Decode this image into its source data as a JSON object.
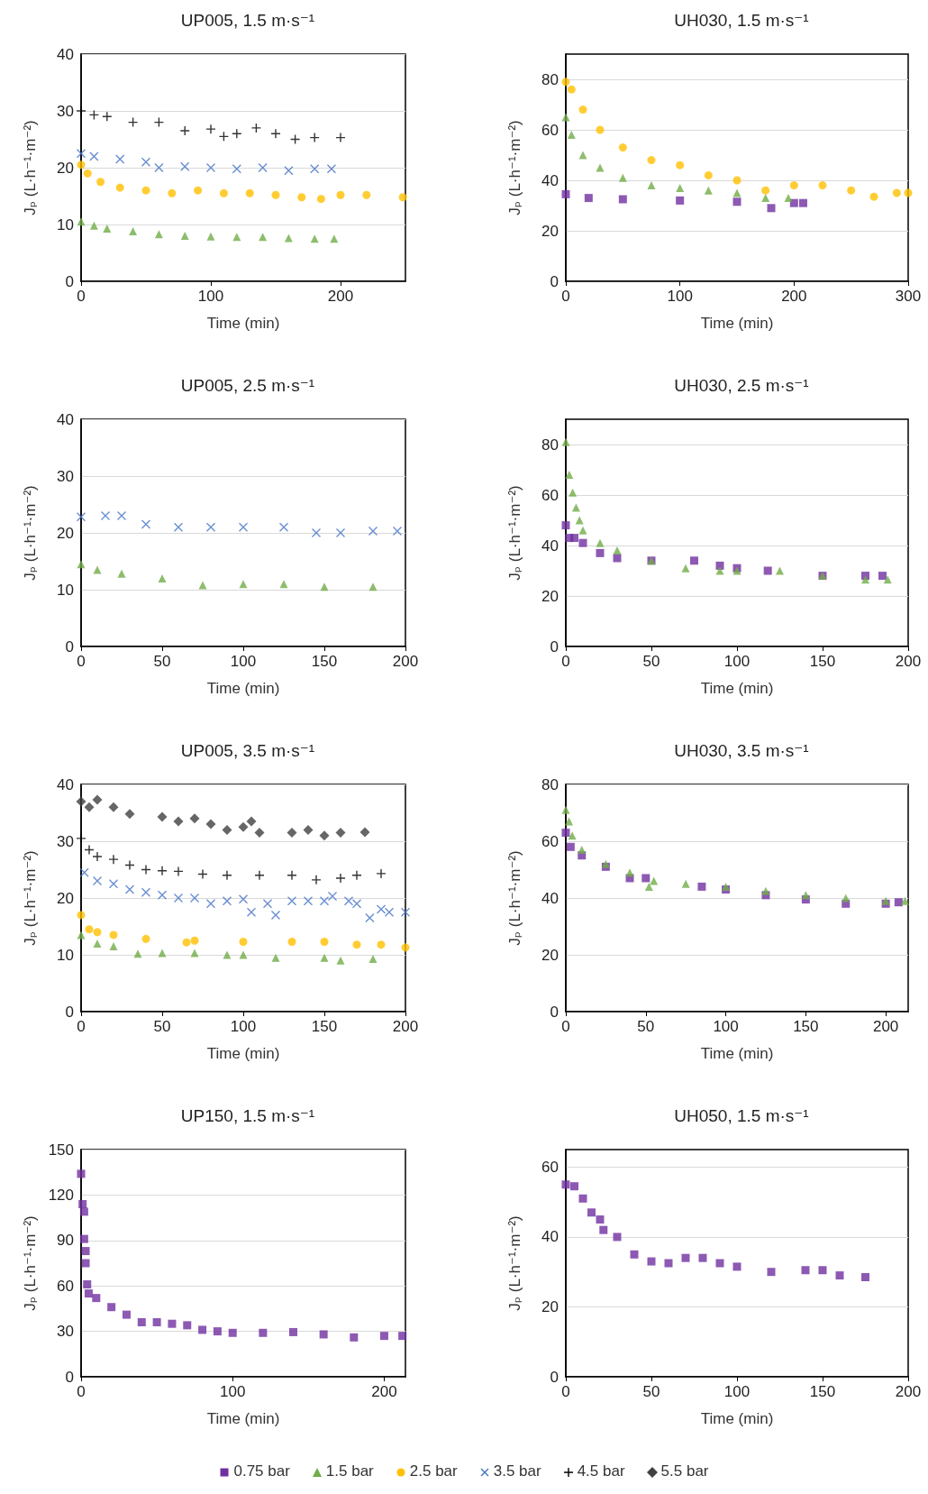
{
  "chart_data": [
    {
      "type": "scatter",
      "title": "UP005, 1.5 m·s⁻¹",
      "xlabel": "Time (min)",
      "ylabel": "Jₚ (L·h⁻¹·m⁻²)",
      "xlim": [
        0,
        250
      ],
      "xticks": [
        0,
        100,
        200
      ],
      "ylim": [
        0,
        40
      ],
      "yticks": [
        0,
        10,
        20,
        30,
        40
      ],
      "grid": "y",
      "legend": "bottom",
      "series": [
        {
          "name": "1.5 bar",
          "color": "#70ad47",
          "marker": "triangle",
          "x": [
            0,
            10,
            20,
            40,
            60,
            80,
            100,
            120,
            140,
            160,
            180,
            195
          ],
          "values": [
            10.5,
            9.8,
            9.3,
            8.8,
            8.3,
            8.0,
            7.9,
            7.8,
            7.8,
            7.6,
            7.5,
            7.5
          ]
        },
        {
          "name": "2.5 bar",
          "color": "#ffc000",
          "marker": "circle",
          "x": [
            0,
            5,
            15,
            30,
            50,
            70,
            90,
            110,
            130,
            150,
            170,
            185,
            200,
            220,
            248
          ],
          "values": [
            20.5,
            19,
            17.5,
            16.5,
            16,
            15.5,
            16,
            15.5,
            15.5,
            15.2,
            14.8,
            14.5,
            15.2,
            15.2,
            14.8
          ]
        },
        {
          "name": "3.5 bar",
          "color": "#4472c4",
          "marker": "cross",
          "x": [
            0,
            10,
            30,
            50,
            60,
            80,
            100,
            120,
            140,
            160,
            180,
            193
          ],
          "values": [
            22.5,
            22,
            21.5,
            21,
            20,
            20.2,
            20,
            19.8,
            20,
            19.5,
            19.8,
            19.8
          ]
        },
        {
          "name": "4.5 bar",
          "color": "#000000",
          "marker": "plus",
          "x": [
            0,
            10,
            20,
            40,
            60,
            80,
            100,
            110,
            120,
            135,
            150,
            165,
            180,
            200
          ],
          "values": [
            30,
            29.3,
            29,
            28,
            28,
            26.5,
            26.8,
            25.5,
            26,
            27,
            26,
            25,
            25.3,
            25.3
          ]
        }
      ]
    },
    {
      "type": "scatter",
      "title": "UH030, 1.5 m·s⁻¹",
      "xlabel": "Time (min)",
      "ylabel": "Jₚ (L·h⁻¹·m⁻²)",
      "xlim": [
        0,
        300
      ],
      "xticks": [
        0,
        100,
        200,
        300
      ],
      "ylim": [
        0,
        90
      ],
      "yticks": [
        0,
        20,
        40,
        60,
        80
      ],
      "grid": "y",
      "legend": "bottom",
      "series": [
        {
          "name": "0.75 bar",
          "color": "#7030a0",
          "marker": "square",
          "x": [
            0,
            20,
            50,
            100,
            150,
            180,
            200,
            208
          ],
          "values": [
            34.5,
            33,
            32.5,
            32,
            31.5,
            29,
            31,
            31
          ]
        },
        {
          "name": "1.5 bar",
          "color": "#70ad47",
          "marker": "triangle",
          "x": [
            0,
            5,
            15,
            30,
            50,
            75,
            100,
            125,
            150,
            175,
            195
          ],
          "values": [
            65,
            58,
            50,
            45,
            41,
            38,
            37,
            36,
            35,
            33,
            33
          ]
        },
        {
          "name": "2.5 bar",
          "color": "#ffc000",
          "marker": "circle",
          "x": [
            0,
            5,
            15,
            30,
            50,
            75,
            100,
            125,
            150,
            175,
            200,
            225,
            250,
            270,
            290,
            300
          ],
          "values": [
            79,
            76,
            68,
            60,
            53,
            48,
            46,
            42,
            40,
            36,
            38,
            38,
            36,
            33.5,
            35,
            35
          ]
        }
      ]
    },
    {
      "type": "scatter",
      "title": "UP005, 2.5 m·s⁻¹",
      "xlabel": "Time (min)",
      "ylabel": "Jₚ (L·h⁻¹·m⁻²)",
      "xlim": [
        0,
        200
      ],
      "xticks": [
        0,
        50,
        100,
        150,
        200
      ],
      "ylim": [
        0,
        40
      ],
      "yticks": [
        0,
        10,
        20,
        30,
        40
      ],
      "grid": "y",
      "legend": "bottom",
      "series": [
        {
          "name": "1.5 bar",
          "color": "#70ad47",
          "marker": "triangle",
          "x": [
            0,
            10,
            25,
            50,
            75,
            100,
            125,
            150,
            180
          ],
          "values": [
            14.5,
            13.5,
            12.8,
            12,
            10.8,
            11,
            11,
            10.5,
            10.5
          ]
        },
        {
          "name": "3.5 bar",
          "color": "#4472c4",
          "marker": "cross",
          "x": [
            0,
            15,
            25,
            40,
            60,
            80,
            100,
            125,
            145,
            160,
            180,
            195
          ],
          "values": [
            22.8,
            23,
            23,
            21.5,
            21,
            21,
            21,
            21,
            20,
            20,
            20.3,
            20.3
          ]
        }
      ]
    },
    {
      "type": "scatter",
      "title": "UH030, 2.5 m·s⁻¹",
      "xlabel": "Time (min)",
      "ylabel": "Jₚ (L·h⁻¹·m⁻²)",
      "xlim": [
        0,
        200
      ],
      "xticks": [
        0,
        50,
        100,
        150,
        200
      ],
      "ylim": [
        0,
        90
      ],
      "yticks": [
        0,
        20,
        40,
        60,
        80
      ],
      "grid": "y",
      "legend": "bottom",
      "series": [
        {
          "name": "0.75 bar",
          "color": "#7030a0",
          "marker": "square",
          "x": [
            0,
            2,
            5,
            10,
            20,
            30,
            50,
            75,
            90,
            100,
            118,
            150,
            175,
            185
          ],
          "values": [
            48,
            43,
            43,
            41,
            37,
            35,
            34,
            34,
            32,
            31,
            30,
            28,
            28,
            28
          ]
        },
        {
          "name": "1.5 bar",
          "color": "#70ad47",
          "marker": "triangle",
          "x": [
            0,
            2,
            4,
            6,
            8,
            10,
            20,
            30,
            50,
            70,
            90,
            100,
            125,
            150,
            175,
            188
          ],
          "values": [
            81,
            68,
            61,
            55,
            50,
            46,
            41,
            38,
            34,
            31,
            30,
            30,
            30,
            28,
            26.5,
            26.5
          ]
        }
      ]
    },
    {
      "type": "scatter",
      "title": "UP005, 3.5 m·s⁻¹",
      "xlabel": "Time (min)",
      "ylabel": "Jₚ (L·h⁻¹·m⁻²)",
      "xlim": [
        0,
        200
      ],
      "xticks": [
        0,
        50,
        100,
        150,
        200
      ],
      "ylim": [
        0,
        40
      ],
      "yticks": [
        0,
        10,
        20,
        30,
        40
      ],
      "grid": "y",
      "legend": "bottom",
      "series": [
        {
          "name": "1.5 bar",
          "color": "#70ad47",
          "marker": "triangle",
          "x": [
            0,
            10,
            20,
            35,
            50,
            70,
            90,
            100,
            120,
            150,
            160,
            180
          ],
          "values": [
            13.5,
            12,
            11.5,
            10.2,
            10.3,
            10.3,
            10,
            10,
            9.5,
            9.5,
            9,
            9.3
          ]
        },
        {
          "name": "2.5 bar",
          "color": "#ffc000",
          "marker": "circle",
          "x": [
            0,
            5,
            10,
            20,
            40,
            65,
            70,
            100,
            130,
            150,
            170,
            185,
            200
          ],
          "values": [
            17,
            14.5,
            14,
            13.5,
            12.8,
            12.2,
            12.5,
            12.3,
            12.3,
            12.3,
            11.8,
            11.8,
            11.3
          ]
        },
        {
          "name": "3.5 bar",
          "color": "#4472c4",
          "marker": "cross",
          "x": [
            2,
            10,
            20,
            30,
            40,
            50,
            60,
            70,
            80,
            90,
            100,
            105,
            115,
            120,
            130,
            140,
            150,
            155,
            165,
            170,
            178,
            185,
            190,
            200
          ],
          "values": [
            24.5,
            23,
            22.5,
            21.5,
            21,
            20.5,
            20,
            20,
            19,
            19.5,
            19.8,
            17.5,
            19,
            17,
            19.5,
            19.5,
            19.5,
            20.3,
            19.5,
            19,
            16.5,
            18,
            17.5,
            17.5
          ]
        },
        {
          "name": "4.5 bar",
          "color": "#000000",
          "marker": "plus",
          "x": [
            0,
            5,
            10,
            20,
            30,
            40,
            50,
            60,
            75,
            90,
            110,
            130,
            145,
            160,
            170,
            185
          ],
          "values": [
            30.5,
            28.5,
            27.3,
            26.8,
            25.8,
            25,
            24.8,
            24.7,
            24.2,
            24,
            24,
            24,
            23.2,
            23.5,
            24,
            24.3
          ]
        },
        {
          "name": "5.5 bar",
          "color": "#404040",
          "marker": "diamond",
          "x": [
            0,
            5,
            10,
            20,
            30,
            50,
            60,
            70,
            80,
            90,
            100,
            105,
            110,
            130,
            140,
            150,
            160,
            175
          ],
          "values": [
            37,
            36,
            37.3,
            36,
            34.8,
            34.3,
            33.5,
            34,
            33,
            32,
            32.5,
            33.5,
            31.5,
            31.5,
            32,
            31,
            31.5,
            31.6
          ]
        }
      ]
    },
    {
      "type": "scatter",
      "title": "UH030, 3.5 m·s⁻¹",
      "xlabel": "Time (min)",
      "ylabel": "Jₚ (L·h⁻¹·m⁻²)",
      "xlim": [
        0,
        214
      ],
      "xticks": [
        0,
        50,
        100,
        150,
        200
      ],
      "ylim": [
        0,
        80
      ],
      "yticks": [
        0,
        20,
        40,
        60,
        80
      ],
      "grid": "y",
      "legend": "bottom",
      "series": [
        {
          "name": "0.75 bar",
          "color": "#7030a0",
          "marker": "square",
          "x": [
            0,
            3,
            10,
            25,
            40,
            50,
            85,
            100,
            125,
            150,
            175,
            200,
            208
          ],
          "values": [
            63,
            58,
            55,
            51,
            47,
            47,
            44,
            43,
            41,
            39.5,
            38,
            38,
            38.5
          ]
        },
        {
          "name": "1.5 bar",
          "color": "#70ad47",
          "marker": "triangle",
          "x": [
            0,
            2,
            4,
            10,
            25,
            40,
            52,
            55,
            75,
            100,
            125,
            150,
            175,
            200,
            212
          ],
          "values": [
            71,
            67,
            62,
            57,
            52,
            49,
            44,
            46,
            45,
            44,
            42.5,
            41,
            40,
            39,
            39
          ]
        }
      ]
    },
    {
      "type": "scatter",
      "title": "UP150, 1.5 m·s⁻¹",
      "xlabel": "Time (min)",
      "ylabel": "Jₚ (L·h⁻¹·m⁻²)",
      "xlim": [
        0,
        214
      ],
      "xticks": [
        0,
        100,
        200
      ],
      "ylim": [
        0,
        150
      ],
      "yticks": [
        0,
        30,
        60,
        90,
        120,
        150
      ],
      "grid": "y",
      "legend": "bottom",
      "series": [
        {
          "name": "0.75 bar",
          "color": "#7030a0",
          "marker": "square",
          "x": [
            0,
            1,
            2,
            2,
            3,
            3,
            4,
            5,
            10,
            20,
            30,
            40,
            50,
            60,
            70,
            80,
            90,
            100,
            120,
            140,
            160,
            180,
            200,
            212
          ],
          "values": [
            134,
            114,
            109,
            91,
            83,
            75,
            61,
            55,
            52,
            46,
            41,
            36,
            36,
            35,
            34,
            31,
            30,
            29,
            29,
            29.5,
            28,
            26,
            27,
            27
          ]
        }
      ]
    },
    {
      "type": "scatter",
      "title": "UH050, 1.5 m·s⁻¹",
      "xlabel": "Time (min)",
      "ylabel": "Jₚ (L·h⁻¹·m⁻²)",
      "xlim": [
        0,
        200
      ],
      "xticks": [
        0,
        50,
        100,
        150,
        200
      ],
      "ylim": [
        0,
        65
      ],
      "yticks": [
        0,
        20,
        40,
        60
      ],
      "grid": "y",
      "legend": "bottom",
      "series": [
        {
          "name": "0.75 bar",
          "color": "#7030a0",
          "marker": "square",
          "x": [
            0,
            5,
            10,
            15,
            20,
            22,
            30,
            40,
            50,
            60,
            70,
            80,
            90,
            100,
            120,
            140,
            150,
            160,
            175
          ],
          "values": [
            55,
            54.5,
            51,
            47,
            45,
            42,
            40,
            35,
            33,
            32.5,
            34,
            34,
            32.5,
            31.5,
            30,
            30.5,
            30.5,
            29,
            28.5
          ]
        }
      ]
    }
  ]
}
